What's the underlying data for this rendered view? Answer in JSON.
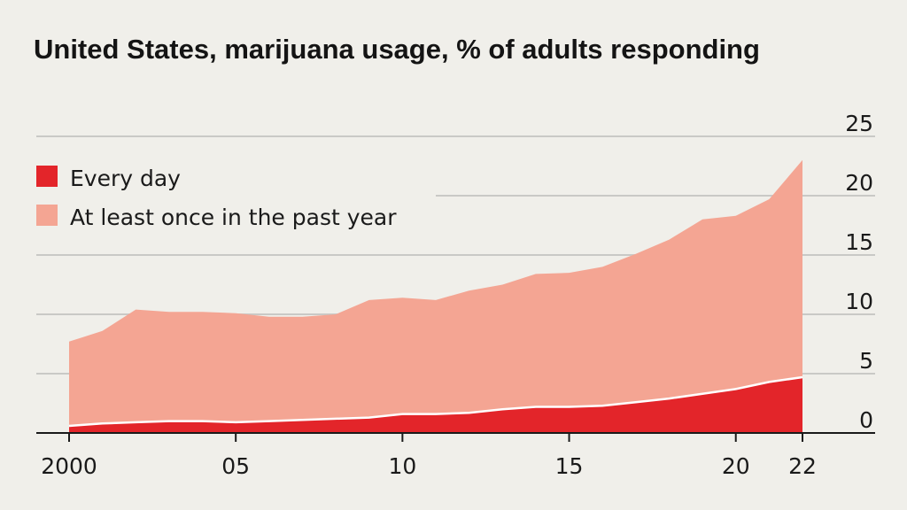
{
  "chart_data": {
    "type": "area",
    "title": "United States, marijuana usage, % of adults responding",
    "x": [
      2000,
      2001,
      2002,
      2003,
      2004,
      2005,
      2006,
      2007,
      2008,
      2009,
      2010,
      2011,
      2012,
      2013,
      2014,
      2015,
      2016,
      2017,
      2018,
      2019,
      2020,
      2021,
      2022
    ],
    "series": [
      {
        "name": "At least once in the past year",
        "color": "#f4a593",
        "values": [
          7.7,
          8.6,
          10.4,
          10.2,
          10.2,
          10.1,
          9.8,
          9.8,
          10.0,
          11.2,
          11.4,
          11.2,
          12.0,
          12.5,
          13.4,
          13.5,
          14.0,
          15.1,
          16.3,
          18.0,
          18.3,
          19.7,
          23.0
        ]
      },
      {
        "name": "Every day",
        "color": "#e3252a",
        "values": [
          0.6,
          0.8,
          0.9,
          1.0,
          1.0,
          0.9,
          1.0,
          1.1,
          1.2,
          1.3,
          1.6,
          1.6,
          1.7,
          2.0,
          2.2,
          2.2,
          2.3,
          2.6,
          2.9,
          3.3,
          3.7,
          4.3,
          4.7
        ]
      }
    ],
    "ylim": [
      0,
      25
    ],
    "yticks": [
      "0",
      "5",
      "10",
      "15",
      "20",
      "25"
    ],
    "xticks": [
      {
        "year": 2000,
        "label": "2000"
      },
      {
        "year": 2005,
        "label": "05"
      },
      {
        "year": 2010,
        "label": "10"
      },
      {
        "year": 2015,
        "label": "15"
      },
      {
        "year": 2020,
        "label": "20"
      },
      {
        "year": 2022,
        "label": "22"
      }
    ],
    "legend": [
      {
        "label": "Every day",
        "color": "#e3252a"
      },
      {
        "label": "At least once in the past year",
        "color": "#f4a593"
      }
    ],
    "legend_position": "top-left",
    "grid": true,
    "xlabel": "",
    "ylabel": ""
  }
}
